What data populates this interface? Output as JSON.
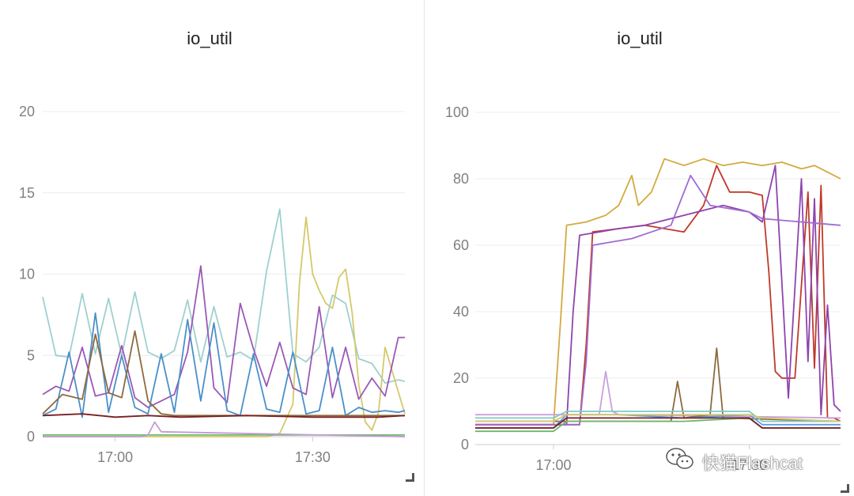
{
  "chart_data": [
    {
      "type": "line",
      "title": "io_util",
      "xlabel": "",
      "ylabel": "",
      "ylim": [
        0,
        20
      ],
      "yticks": [
        0,
        5,
        10,
        15,
        20
      ],
      "xlim": [
        "16:49",
        "17:44"
      ],
      "xticks": [
        "17:00",
        "17:30"
      ],
      "grid": true,
      "series": [
        {
          "color": "#9fd0cf",
          "x": [
            "16:49",
            "16:51",
            "16:53",
            "16:55",
            "16:57",
            "16:59",
            "17:01",
            "17:03",
            "17:05",
            "17:07",
            "17:09",
            "17:11",
            "17:13",
            "17:15",
            "17:17",
            "17:19",
            "17:21",
            "17:23",
            "17:25",
            "17:27",
            "17:29",
            "17:31",
            "17:33",
            "17:35",
            "17:37",
            "17:39",
            "17:41",
            "17:43",
            "17:44"
          ],
          "values": [
            8.6,
            5.0,
            4.9,
            8.8,
            5.1,
            8.5,
            5.0,
            8.9,
            5.2,
            4.8,
            5.3,
            8.4,
            4.6,
            8.0,
            4.9,
            5.2,
            4.7,
            10.2,
            14.0,
            5.1,
            4.6,
            5.5,
            8.7,
            8.2,
            4.8,
            4.5,
            3.3,
            3.5,
            3.4
          ]
        },
        {
          "color": "#d4c96a",
          "x": [
            "16:49",
            "17:21",
            "17:23",
            "17:25",
            "17:27",
            "17:28",
            "17:29",
            "17:30",
            "17:31",
            "17:32",
            "17:33",
            "17:34",
            "17:35",
            "17:36",
            "17:37",
            "17:38",
            "17:39",
            "17:40",
            "17:41",
            "17:44"
          ],
          "values": [
            0,
            0,
            0,
            0.2,
            2.0,
            9.5,
            13.5,
            10.0,
            9.0,
            8.2,
            7.9,
            9.8,
            10.3,
            7.6,
            3.2,
            0.9,
            0.4,
            1.5,
            5.5,
            1.4
          ]
        },
        {
          "color": "#9b59b6",
          "x": [
            "16:49",
            "16:51",
            "16:53",
            "16:55",
            "16:57",
            "16:59",
            "17:01",
            "17:03",
            "17:05",
            "17:07",
            "17:09",
            "17:11",
            "17:13",
            "17:15",
            "17:17",
            "17:19",
            "17:21",
            "17:23",
            "17:25",
            "17:27",
            "17:29",
            "17:31",
            "17:33",
            "17:35",
            "17:37",
            "17:39",
            "17:41",
            "17:43",
            "17:44"
          ],
          "values": [
            2.6,
            3.1,
            2.8,
            5.5,
            2.5,
            2.7,
            5.6,
            2.4,
            1.8,
            2.2,
            2.6,
            5.2,
            10.5,
            3.0,
            2.1,
            8.2,
            5.4,
            3.1,
            5.8,
            3.0,
            2.6,
            8.0,
            2.4,
            5.5,
            2.3,
            3.6,
            2.5,
            6.1,
            6.1
          ]
        },
        {
          "color": "#4a90c9",
          "x": [
            "16:49",
            "16:51",
            "16:53",
            "16:55",
            "16:57",
            "16:59",
            "17:01",
            "17:03",
            "17:05",
            "17:07",
            "17:09",
            "17:11",
            "17:13",
            "17:15",
            "17:17",
            "17:19",
            "17:21",
            "17:23",
            "17:25",
            "17:27",
            "17:29",
            "17:31",
            "17:33",
            "17:35",
            "17:37",
            "17:39",
            "17:41",
            "17:43",
            "17:44"
          ],
          "values": [
            1.3,
            1.7,
            5.2,
            1.2,
            7.6,
            1.5,
            5.0,
            1.8,
            1.4,
            5.1,
            1.5,
            7.2,
            2.2,
            7.0,
            1.6,
            1.3,
            5.1,
            1.7,
            1.5,
            5.2,
            1.4,
            1.6,
            5.5,
            1.3,
            1.8,
            1.5,
            1.6,
            1.5,
            1.6
          ]
        },
        {
          "color": "#8e6a3e",
          "x": [
            "16:49",
            "16:52",
            "16:55",
            "16:57",
            "16:59",
            "17:01",
            "17:03",
            "17:05",
            "17:07",
            "17:09",
            "17:44"
          ],
          "values": [
            1.4,
            2.6,
            2.3,
            6.3,
            2.7,
            2.4,
            6.5,
            2.2,
            1.4,
            1.3,
            1.3
          ]
        },
        {
          "color": "#7a1f1f",
          "x": [
            "16:49",
            "16:55",
            "17:00",
            "17:05",
            "17:10",
            "17:20",
            "17:30",
            "17:40",
            "17:44"
          ],
          "values": [
            1.3,
            1.4,
            1.2,
            1.3,
            1.2,
            1.3,
            1.2,
            1.2,
            1.3
          ]
        },
        {
          "color": "#6bb86b",
          "x": [
            "16:49",
            "17:00",
            "17:20",
            "17:44"
          ],
          "values": [
            0.1,
            0.1,
            0.1,
            0.1
          ]
        },
        {
          "color": "#c39bd3",
          "x": [
            "16:49",
            "17:04",
            "17:05",
            "17:06",
            "17:07",
            "17:44"
          ],
          "values": [
            0,
            0,
            0.1,
            0.9,
            0.3,
            0
          ]
        }
      ]
    },
    {
      "type": "line",
      "title": "io_util",
      "xlabel": "",
      "ylabel": "",
      "ylim": [
        0,
        100
      ],
      "yticks": [
        0,
        20,
        40,
        60,
        80,
        100
      ],
      "xlim": [
        "16:48",
        "17:44"
      ],
      "xticks": [
        "17:00",
        "17:30"
      ],
      "grid": true,
      "series": [
        {
          "color": "#d4a93e",
          "x": [
            "16:48",
            "17:00",
            "17:01",
            "17:02",
            "17:05",
            "17:08",
            "17:10",
            "17:12",
            "17:13",
            "17:15",
            "17:17",
            "17:20",
            "17:23",
            "17:26",
            "17:29",
            "17:32",
            "17:35",
            "17:38",
            "17:40",
            "17:42",
            "17:44"
          ],
          "values": [
            6,
            6,
            35,
            66,
            67,
            69,
            72,
            81,
            72,
            76,
            86,
            84,
            86,
            84,
            85,
            84,
            85,
            83,
            84,
            82,
            80
          ]
        },
        {
          "color": "#c0392b",
          "x": [
            "16:48",
            "17:04",
            "17:05",
            "17:06",
            "17:10",
            "17:14",
            "17:17",
            "17:20",
            "17:23",
            "17:25",
            "17:27",
            "17:30",
            "17:32",
            "17:33",
            "17:34",
            "17:35",
            "17:37",
            "17:39",
            "17:40",
            "17:41",
            "17:42",
            "17:43",
            "17:44"
          ],
          "values": [
            6,
            6,
            30,
            64,
            65,
            66,
            65,
            64,
            72,
            84,
            76,
            76,
            75,
            52,
            22,
            20,
            20,
            76,
            23,
            78,
            8,
            8,
            7
          ]
        },
        {
          "color": "#8e44ad",
          "x": [
            "16:48",
            "17:02",
            "17:03",
            "17:04",
            "17:07",
            "17:10",
            "17:14",
            "17:18",
            "17:22",
            "17:26",
            "17:30",
            "17:32",
            "17:34",
            "17:36",
            "17:38",
            "17:39",
            "17:40",
            "17:41",
            "17:42",
            "17:43",
            "17:44"
          ],
          "values": [
            6,
            6,
            40,
            63,
            64,
            65,
            66,
            68,
            70,
            72,
            70,
            67,
            84,
            14,
            80,
            25,
            74,
            9,
            42,
            12,
            10
          ]
        },
        {
          "color": "#a06bd0",
          "x": [
            "16:48",
            "17:04",
            "17:05",
            "17:06",
            "17:09",
            "17:12",
            "17:15",
            "17:18",
            "17:21",
            "17:24",
            "17:27",
            "17:30",
            "17:32",
            "17:44"
          ],
          "values": [
            6,
            6,
            25,
            60,
            61,
            62,
            64,
            66,
            81,
            72,
            71,
            70,
            68,
            66
          ]
        },
        {
          "color": "#c9a0dc",
          "x": [
            "16:48",
            "17:07",
            "17:08",
            "17:09",
            "17:10",
            "17:44"
          ],
          "values": [
            9,
            9,
            22,
            10,
            9,
            8
          ]
        },
        {
          "color": "#8b6b3e",
          "x": [
            "16:48",
            "17:18",
            "17:19",
            "17:20",
            "17:24",
            "17:25",
            "17:26",
            "17:44"
          ],
          "values": [
            7,
            7,
            19,
            8,
            9,
            29,
            8,
            7
          ]
        },
        {
          "color": "#7fc9c4",
          "x": [
            "16:48",
            "17:00",
            "17:02",
            "17:10",
            "17:20",
            "17:30",
            "17:32",
            "17:44"
          ],
          "values": [
            8,
            8,
            10,
            10,
            10,
            10,
            7,
            7
          ]
        },
        {
          "color": "#5d9cec",
          "x": [
            "16:48",
            "17:00",
            "17:02",
            "17:10",
            "17:20",
            "17:30",
            "17:32",
            "17:44"
          ],
          "values": [
            5,
            5,
            9,
            9,
            8,
            9,
            6,
            6
          ]
        },
        {
          "color": "#6bb86b",
          "x": [
            "16:48",
            "17:00",
            "17:02",
            "17:10",
            "17:20",
            "17:30",
            "17:32",
            "17:44"
          ],
          "values": [
            4,
            4,
            7,
            7,
            7,
            8,
            5,
            5
          ]
        },
        {
          "color": "#d4c96a",
          "x": [
            "16:48",
            "17:00",
            "17:02",
            "17:10",
            "17:20",
            "17:30",
            "17:32",
            "17:44"
          ],
          "values": [
            7,
            7,
            9,
            9,
            9,
            9,
            8,
            7
          ]
        },
        {
          "color": "#7a1f1f",
          "x": [
            "16:48",
            "17:00",
            "17:02",
            "17:20",
            "17:30",
            "17:32",
            "17:44"
          ],
          "values": [
            5,
            5,
            8,
            8,
            8,
            5,
            5
          ]
        }
      ]
    }
  ],
  "watermark": {
    "text": "快猫Flashcat",
    "icon": "wechat-icon"
  }
}
